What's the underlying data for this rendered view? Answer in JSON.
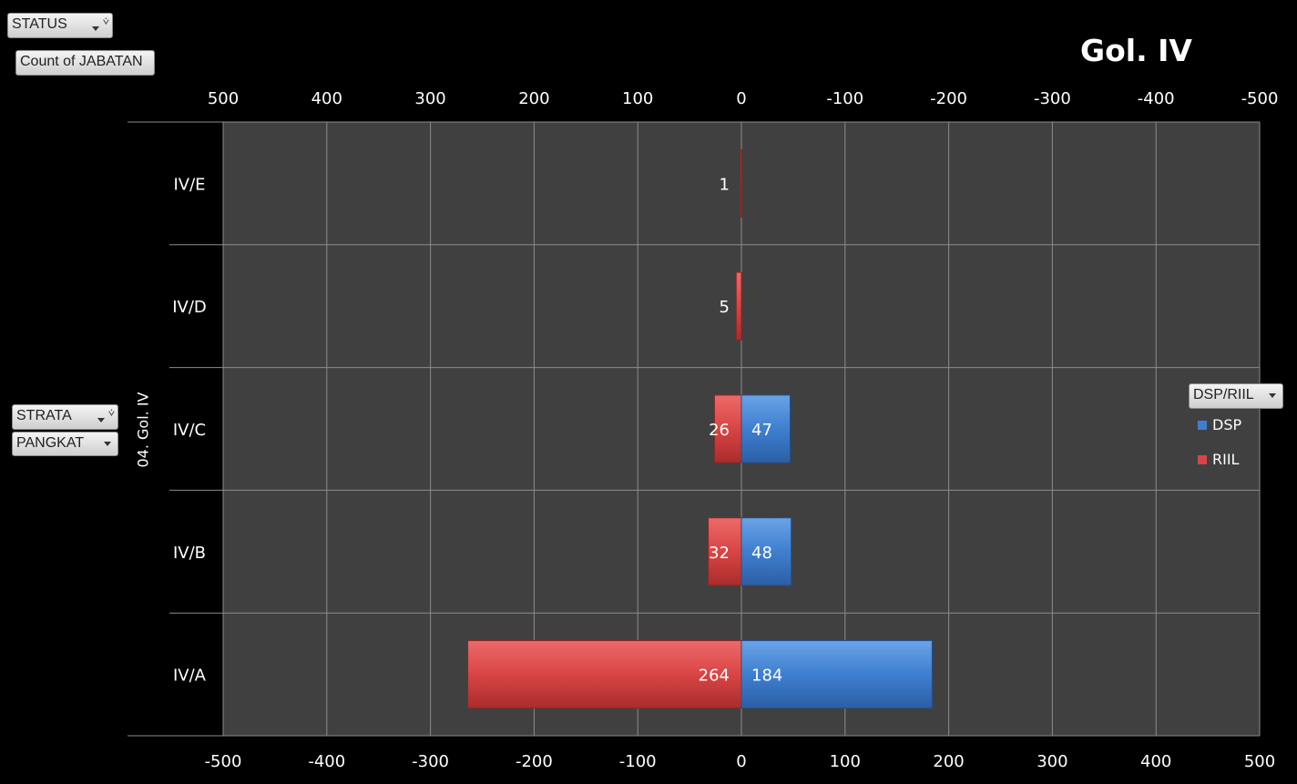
{
  "filters": {
    "status": "STATUS",
    "count": "Count of JABATAN",
    "strata": "STRATA",
    "pangkat": "PANGKAT",
    "legend_field": "DSP/RIIL"
  },
  "chart_data": {
    "type": "bar",
    "orientation": "horizontal",
    "title": "Gol. IV",
    "group_label": "04. Gol. IV",
    "categories": [
      "IV/E",
      "IV/D",
      "IV/C",
      "IV/B",
      "IV/A"
    ],
    "series": [
      {
        "name": "DSP",
        "color": "#3f7fd0",
        "values": [
          0,
          0,
          47,
          48,
          184
        ]
      },
      {
        "name": "RIIL",
        "color": "#d94545",
        "values": [
          1,
          5,
          26,
          32,
          264
        ]
      }
    ],
    "value_labels": {
      "DSP": [
        "",
        "",
        "47",
        "48",
        "184"
      ],
      "RIIL": [
        "1",
        "5",
        "26",
        "32",
        "264"
      ]
    },
    "xlim": [
      -500,
      500
    ],
    "xticks_bottom": [
      "-500",
      "-400",
      "-300",
      "-200",
      "-100",
      "0",
      "100",
      "200",
      "300",
      "400",
      "500"
    ],
    "xticks_top": [
      "500",
      "400",
      "300",
      "200",
      "100",
      "0",
      "-100",
      "-200",
      "-300",
      "-400",
      "-500"
    ],
    "grid": true,
    "legend_position": "right",
    "plot_background": "#404040"
  }
}
